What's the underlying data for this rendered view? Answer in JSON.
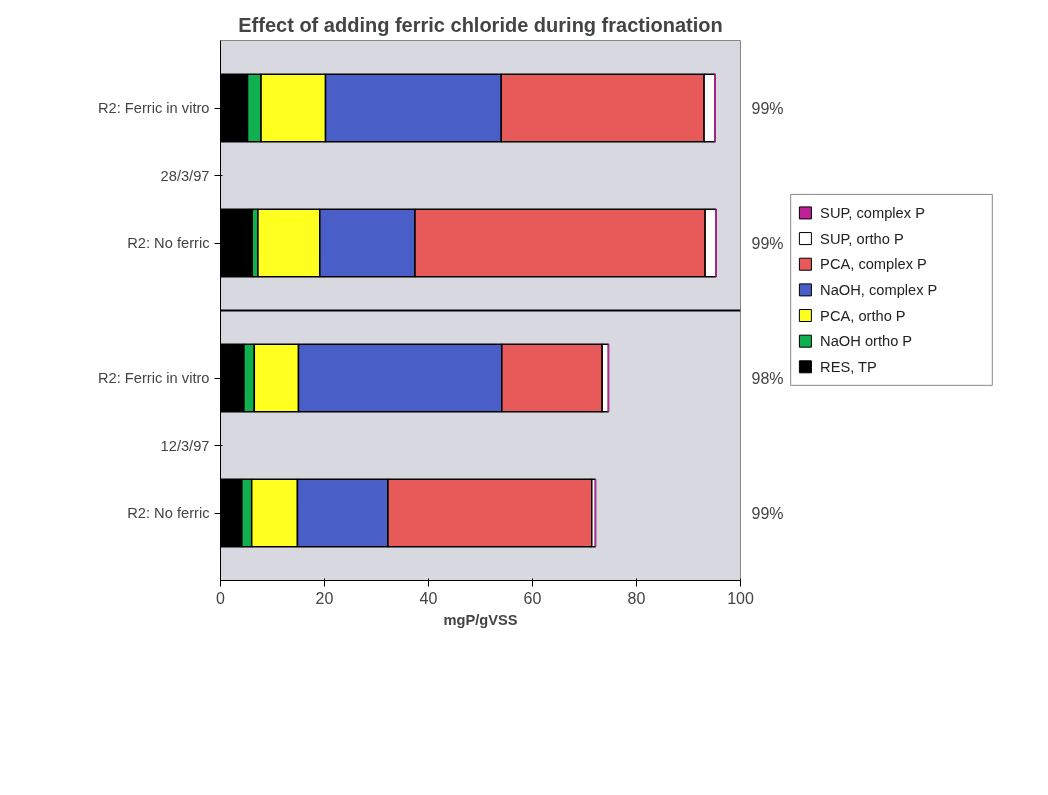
{
  "chart_data": {
    "type": "bar",
    "orientation": "horizontal",
    "stacked": true,
    "title": "Effect of adding ferric chloride during fractionation",
    "xlabel": "mgP/gVSS",
    "categories": [
      "R2: Ferric in vitro",
      "R2: No ferric",
      "R2: Ferric in vitro",
      "R2: No ferric"
    ],
    "series": [
      {
        "name": "RES, TP",
        "color": "#000000",
        "values": [
          5.2,
          6.1,
          4.5,
          4.1
        ]
      },
      {
        "name": "NaOH ortho P",
        "color": "#10b050",
        "values": [
          2.6,
          1.1,
          2.0,
          1.9
        ]
      },
      {
        "name": "PCA, ortho P",
        "color": "#ffff20",
        "values": [
          12.4,
          11.9,
          8.5,
          8.8
        ]
      },
      {
        "name": "NaOH, complex P",
        "color": "#4a5ec8",
        "values": [
          33.8,
          18.3,
          39.1,
          17.4
        ]
      },
      {
        "name": "PCA, complex P",
        "color": "#e85a5a",
        "values": [
          39.0,
          55.8,
          19.3,
          39.2
        ]
      },
      {
        "name": "SUP, ortho P",
        "color": "#ffffff",
        "values": [
          2.1,
          2.1,
          1.2,
          0.7
        ]
      },
      {
        "name": "SUP, complex P",
        "color": "#c0209a",
        "values": [
          0,
          0,
          0,
          0
        ]
      }
    ],
    "annotations": [
      "99%",
      "99%",
      "98%",
      "99%",
      "28/3/97",
      "12/3/97"
    ],
    "xlim": [
      0,
      100
    ],
    "xticks": [
      0,
      20,
      40,
      60,
      80,
      100
    ],
    "grid": false,
    "legend": "right"
  }
}
